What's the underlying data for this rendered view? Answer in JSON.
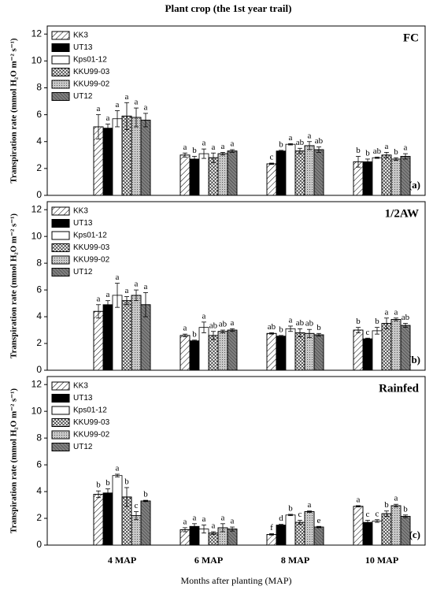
{
  "title": "Plant crop (the 1st year trail)",
  "chart_data": [
    {
      "type": "bar",
      "ylabel": "Transpiration rate (mmol H₂O m⁻² s⁻¹)",
      "annotation": "FC",
      "panel_label": "(a)",
      "ylim": [
        0,
        12.6
      ],
      "yticks": [
        0,
        2,
        4,
        6,
        8,
        10,
        12
      ],
      "legend": "upper left",
      "series": [
        {
          "name": "KK3",
          "color": "#ffffff",
          "values": [
            5.1,
            3.0,
            2.35,
            2.5
          ],
          "errors": [
            0.9,
            0.15,
            0.05,
            0.4
          ],
          "letters": [
            "a",
            "a",
            "c",
            "b"
          ]
        },
        {
          "name": "UT13",
          "color": "#000000",
          "values": [
            5.0,
            2.7,
            3.3,
            2.5
          ],
          "errors": [
            0.3,
            0.2,
            0.05,
            0.2
          ],
          "letters": [
            "a",
            "b",
            "b",
            "b"
          ]
        },
        {
          "name": "Kps01-12",
          "color": "#ffffff",
          "values": [
            5.7,
            3.1,
            3.8,
            2.8
          ],
          "errors": [
            0.6,
            0.35,
            0.05,
            0.05
          ],
          "letters": [
            "a",
            "a",
            "a",
            "ab"
          ]
        },
        {
          "name": "KKU99-03",
          "color": "#ffffff",
          "values": [
            5.9,
            2.8,
            3.3,
            3.0
          ],
          "errors": [
            1.0,
            0.35,
            0.2,
            0.2
          ],
          "letters": [
            "a",
            "a",
            "ab",
            "a"
          ]
        },
        {
          "name": "KKU99-02",
          "color": "#c8c8c8",
          "values": [
            5.8,
            3.1,
            3.7,
            2.7
          ],
          "errors": [
            0.7,
            0.1,
            0.3,
            0.1
          ],
          "letters": [
            "a",
            "a",
            "a",
            "b"
          ]
        },
        {
          "name": "UT12",
          "color": "#808080",
          "values": [
            5.6,
            3.3,
            3.4,
            2.9
          ],
          "errors": [
            0.5,
            0.1,
            0.2,
            0.2
          ],
          "letters": [
            "a",
            "a",
            "ab",
            "a"
          ]
        }
      ]
    },
    {
      "type": "bar",
      "ylabel": "Transpiration rate (mmol H₂O m⁻² s⁻¹)",
      "annotation": "1/2AW",
      "panel_label": "(b)",
      "ylim": [
        0,
        12.6
      ],
      "yticks": [
        0,
        2,
        4,
        6,
        8,
        10,
        12
      ],
      "legend": "upper left",
      "series": [
        {
          "name": "KK3",
          "color": "#ffffff",
          "values": [
            4.4,
            2.6,
            2.75,
            3.0
          ],
          "errors": [
            0.5,
            0.1,
            0.05,
            0.2
          ],
          "letters": [
            "a",
            "a",
            "ab",
            "b"
          ]
        },
        {
          "name": "UT13",
          "color": "#000000",
          "values": [
            4.9,
            2.2,
            2.55,
            2.35
          ],
          "errors": [
            0.3,
            0.05,
            0.05,
            0.05
          ],
          "letters": [
            "a",
            "b",
            "b",
            "c"
          ]
        },
        {
          "name": "Kps01-12",
          "color": "#ffffff",
          "values": [
            5.6,
            3.2,
            3.1,
            2.95
          ],
          "errors": [
            0.9,
            0.4,
            0.2,
            0.25
          ],
          "letters": [
            "a",
            "a",
            "a",
            "b"
          ]
        },
        {
          "name": "KKU99-03",
          "color": "#ffffff",
          "values": [
            5.2,
            2.6,
            2.8,
            3.5
          ],
          "errors": [
            0.3,
            0.3,
            0.3,
            0.4
          ],
          "letters": [
            "a",
            "ab",
            "ab",
            "a"
          ]
        },
        {
          "name": "KKU99-02",
          "color": "#c8c8c8",
          "values": [
            5.6,
            2.9,
            2.75,
            3.8
          ],
          "errors": [
            0.4,
            0.1,
            0.3,
            0.1
          ],
          "letters": [
            "a",
            "ab",
            "ab",
            "a"
          ]
        },
        {
          "name": "UT12",
          "color": "#808080",
          "values": [
            4.9,
            3.0,
            2.65,
            3.35
          ],
          "errors": [
            0.9,
            0.1,
            0.1,
            0.15
          ],
          "letters": [
            "a",
            "a",
            "b",
            "ab"
          ]
        }
      ]
    },
    {
      "type": "bar",
      "ylabel": "Transpiration rate (mmol H₂O m⁻² s⁻¹)",
      "annotation": "Rainfed",
      "panel_label": "(c)",
      "xlabel": "Months after planting (MAP)",
      "categories": [
        "4 MAP",
        "6 MAP",
        "8 MAP",
        "10 MAP"
      ],
      "ylim": [
        0,
        12.6
      ],
      "yticks": [
        0,
        2,
        4,
        6,
        8,
        10,
        12
      ],
      "legend": "upper left",
      "series": [
        {
          "name": "KK3",
          "color": "#ffffff",
          "values": [
            3.8,
            1.15,
            0.8,
            2.9
          ],
          "errors": [
            0.25,
            0.15,
            0.05,
            0.05
          ],
          "letters": [
            "b",
            "a",
            "f",
            "a"
          ]
        },
        {
          "name": "UT13",
          "color": "#000000",
          "values": [
            3.9,
            1.4,
            1.5,
            1.7
          ],
          "errors": [
            0.3,
            0.2,
            0.05,
            0.15
          ],
          "letters": [
            "b",
            "a",
            "d",
            "c"
          ]
        },
        {
          "name": "Kps01-12",
          "color": "#ffffff",
          "values": [
            5.2,
            1.2,
            2.25,
            1.8
          ],
          "errors": [
            0.1,
            0.3,
            0.05,
            0.1
          ],
          "letters": [
            "a",
            "a",
            "b",
            "c"
          ]
        },
        {
          "name": "KKU99-03",
          "color": "#ffffff",
          "values": [
            3.6,
            0.9,
            1.7,
            2.35
          ],
          "errors": [
            0.7,
            0.1,
            0.15,
            0.2
          ],
          "letters": [
            "b",
            "a",
            "c",
            "b"
          ]
        },
        {
          "name": "KKU99-02",
          "color": "#c8c8c8",
          "values": [
            2.2,
            1.3,
            2.5,
            2.95
          ],
          "errors": [
            0.3,
            0.3,
            0.05,
            0.1
          ],
          "letters": [
            "c",
            "a",
            "a",
            "a"
          ]
        },
        {
          "name": "UT12",
          "color": "#808080",
          "values": [
            3.3,
            1.2,
            1.35,
            2.15
          ],
          "errors": [
            0.05,
            0.15,
            0.05,
            0.1
          ],
          "letters": [
            "b",
            "a",
            "e",
            "b"
          ]
        }
      ]
    }
  ]
}
